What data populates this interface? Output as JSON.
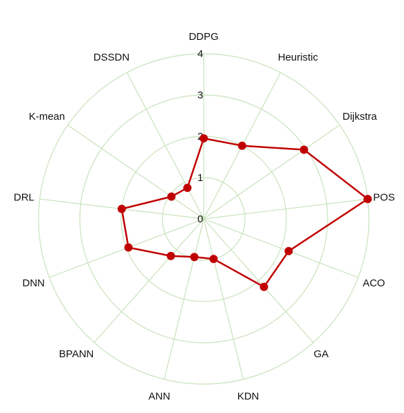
{
  "chart_data": {
    "type": "radar",
    "categories": [
      "DDPG",
      "Heuristic",
      "Dijkstra",
      "POS",
      "ACO",
      "GA",
      "KDN",
      "ANN",
      "BPANN",
      "DNN",
      "DRL",
      "K-mean",
      "DSSDN"
    ],
    "series": [
      {
        "values": [
          1.95,
          2.0,
          2.95,
          4.0,
          2.2,
          2.2,
          1.0,
          0.95,
          1.2,
          1.95,
          2.0,
          0.95,
          0.85
        ]
      }
    ],
    "rlim": [
      0,
      4
    ],
    "rticks": [
      0,
      1,
      2,
      3,
      4
    ],
    "rtick_labels": [
      "0",
      "1",
      "2",
      "3",
      "4"
    ],
    "grid": true,
    "colors": {
      "series": "#c00000",
      "grid": "#c8e2bc"
    }
  }
}
